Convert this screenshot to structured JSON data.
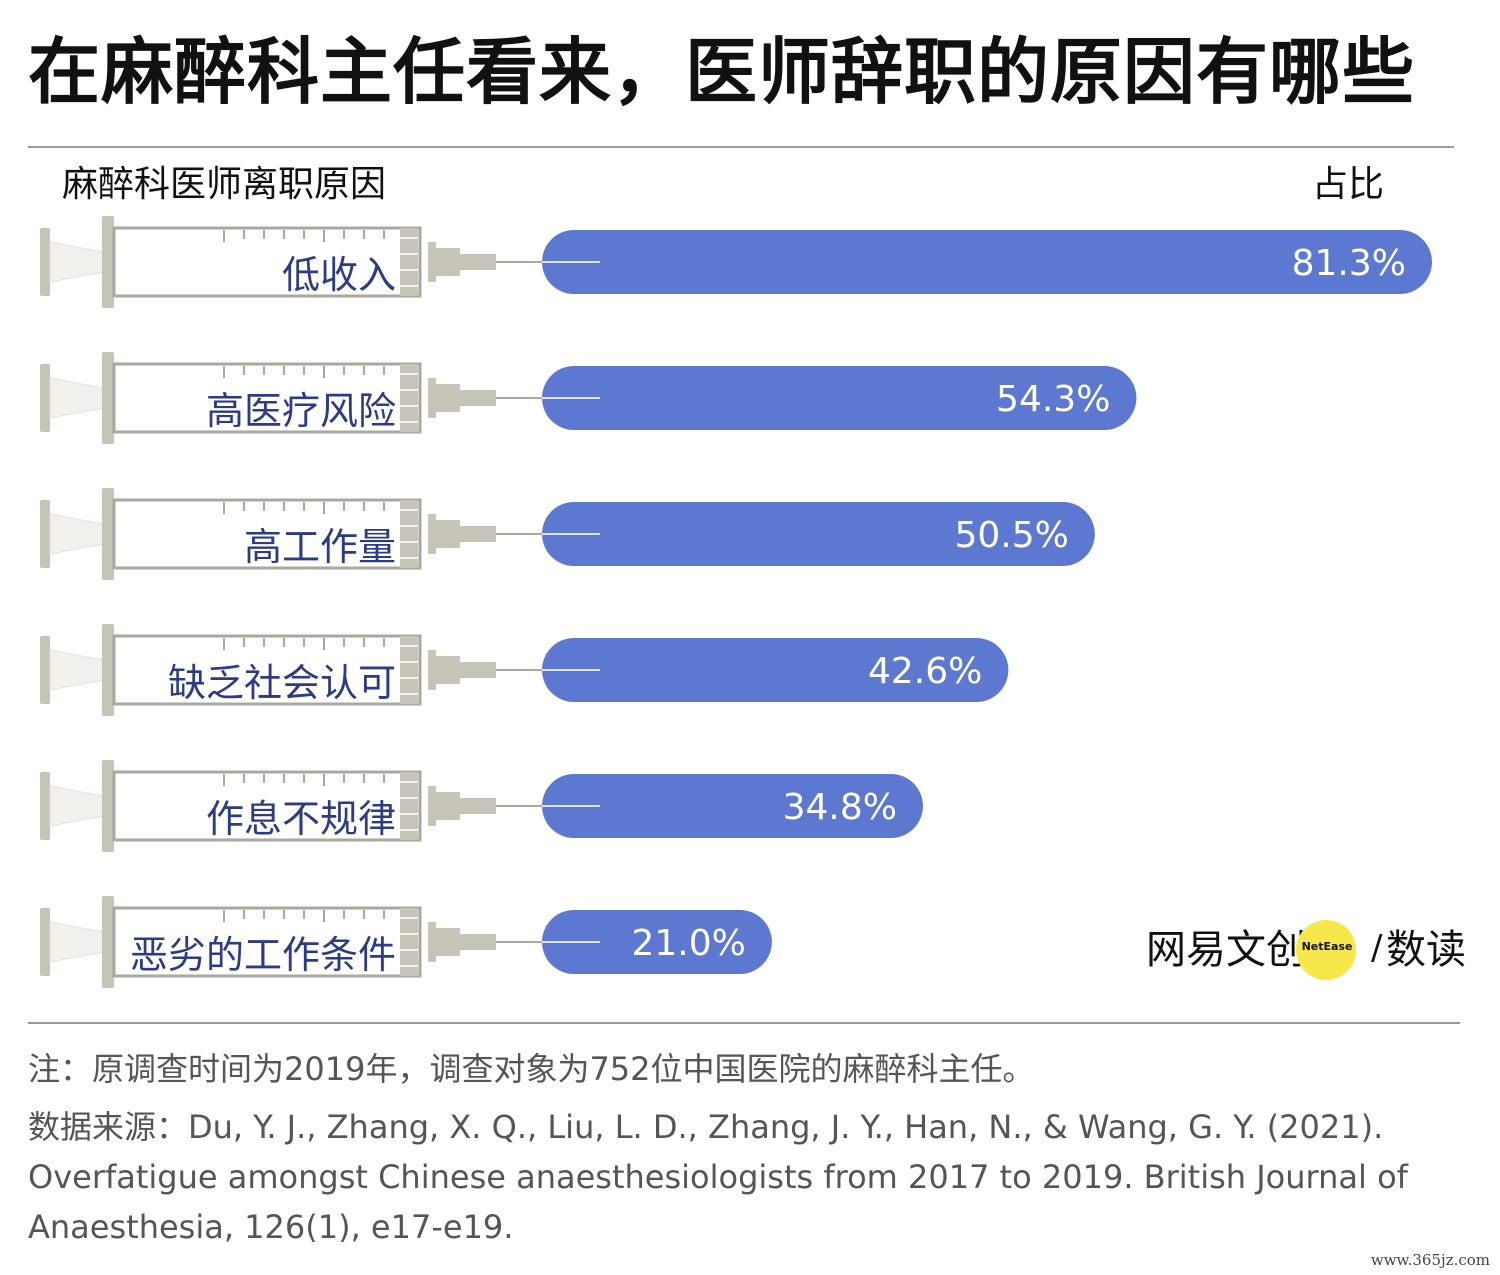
{
  "title": "在麻醉科主任看来，医师辞职的原因有哪些",
  "header": {
    "left_label": "麻醉科医师离职原因",
    "right_label": "占比"
  },
  "chart_data": {
    "type": "bar",
    "orientation": "horizontal",
    "categories": [
      "低收入",
      "高医疗风险",
      "高工作量",
      "缺乏社会认可",
      "作息不规律",
      "恶劣的工作条件"
    ],
    "values": [
      81.3,
      54.3,
      50.5,
      42.6,
      34.8,
      21.0
    ],
    "value_labels": [
      "81.3%",
      "54.3%",
      "50.5%",
      "42.6%",
      "34.8%",
      "21.0%"
    ],
    "unit": "%",
    "grid": false
  },
  "colors": {
    "bar": "#5d78d1",
    "bar_label": "#ffffff",
    "category_label": "#2b3b86",
    "syringe_fill": "#c6c3b7",
    "syringe_stroke": "#aaa79c"
  },
  "logo": {
    "brand": "网易文创",
    "circle_text": "NetEase",
    "separator": "/",
    "product": "数读"
  },
  "footer": {
    "note": "注：原调查时间为2019年，调查对象为752位中国医院的麻醉科主任。",
    "source": "数据来源：Du, Y. J., Zhang, X. Q., Liu, L. D., Zhang, J. Y., Han, N., & Wang, G. Y. (2021). Overfatigue amongst Chinese anaesthesiologists from 2017 to 2019. British Journal of Anaesthesia, 126(1), e17-e19."
  },
  "watermark": "www.365jz.com"
}
